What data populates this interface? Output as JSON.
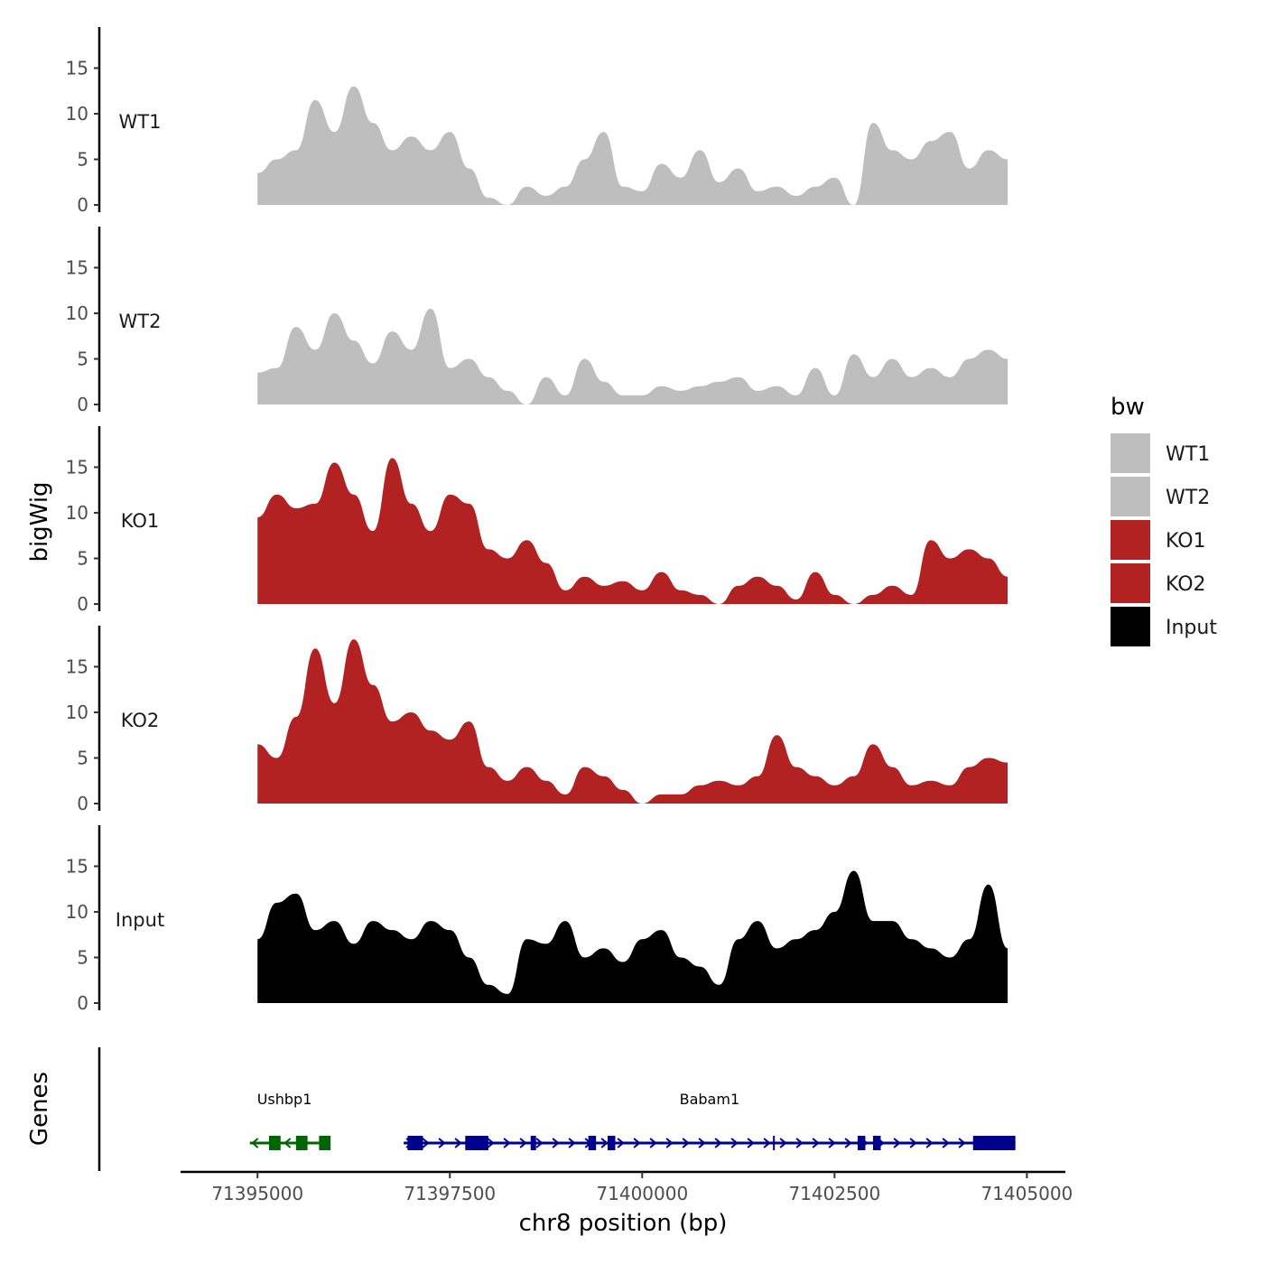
{
  "chart_data": {
    "type": "area",
    "chromosome": "chr8",
    "xlabel": "chr8 position (bp)",
    "ylabel": "bigWig",
    "genes_label": "Genes",
    "xlim": [
      71394000,
      71405500
    ],
    "ylim": [
      0,
      19.5
    ],
    "x_ticks": [
      71395000,
      71397500,
      71400000,
      71402500,
      71405000
    ],
    "x_tick_labels": [
      "71395000",
      "71397500",
      "71400000",
      "71402500",
      "71405000"
    ],
    "y_ticks": [
      0,
      5,
      10,
      15
    ],
    "y_tick_labels": [
      "0",
      "5",
      "10",
      "15"
    ],
    "legend": {
      "title": "bw",
      "entries": [
        {
          "label": "WT1",
          "color": "#bebebe"
        },
        {
          "label": "WT2",
          "color": "#bebebe"
        },
        {
          "label": "KO1",
          "color": "#b22222"
        },
        {
          "label": "KO2",
          "color": "#b22222"
        },
        {
          "label": "Input",
          "color": "#000000"
        }
      ]
    },
    "x": [
      71395000,
      71395250,
      71395500,
      71395750,
      71396000,
      71396250,
      71396500,
      71396750,
      71397000,
      71397250,
      71397500,
      71397750,
      71398000,
      71398250,
      71398500,
      71398750,
      71399000,
      71399250,
      71399500,
      71399750,
      71400000,
      71400250,
      71400500,
      71400750,
      71401000,
      71401250,
      71401500,
      71401750,
      71402000,
      71402250,
      71402500,
      71402750,
      71403000,
      71403250,
      71403500,
      71403750,
      71404000,
      71404250,
      71404500,
      71404750
    ],
    "series": [
      {
        "name": "WT1",
        "color": "#bebebe",
        "values": [
          3.5,
          5,
          6,
          11.5,
          8,
          13,
          9,
          6,
          7.5,
          6,
          8,
          4,
          0.8,
          0,
          2,
          1,
          2,
          5,
          8,
          2,
          1.5,
          4.5,
          3,
          6,
          2.5,
          4,
          1.5,
          2,
          1,
          2,
          3,
          0,
          9,
          6,
          5,
          7,
          8,
          4,
          6,
          5
        ]
      },
      {
        "name": "WT2",
        "color": "#bebebe",
        "values": [
          3.5,
          4,
          8.5,
          6,
          10,
          7,
          4.5,
          8,
          6,
          10.5,
          4,
          5,
          3,
          1.5,
          0,
          3,
          1,
          5,
          2.5,
          1,
          1,
          2,
          1.5,
          2,
          2.5,
          3,
          1.5,
          2,
          1,
          4,
          1,
          5.5,
          3,
          5,
          3,
          4,
          3,
          5,
          6,
          5
        ]
      },
      {
        "name": "KO1",
        "color": "#b22222",
        "values": [
          9.5,
          12,
          10.5,
          11,
          15.5,
          12,
          8,
          16,
          11,
          8,
          12,
          11,
          6,
          5,
          7,
          4.5,
          1.5,
          3,
          2,
          2.5,
          1.5,
          3.5,
          1.5,
          1,
          0,
          2,
          3,
          2,
          0.5,
          3.5,
          1,
          0,
          1,
          2,
          1,
          7,
          5,
          6,
          5,
          3
        ]
      },
      {
        "name": "KO2",
        "color": "#b22222",
        "values": [
          6.5,
          5,
          9.5,
          17,
          11,
          18,
          13,
          9,
          10,
          8,
          7,
          9,
          4,
          2.5,
          4,
          2.5,
          1,
          4,
          3,
          1.5,
          0,
          1,
          1,
          2,
          2.5,
          2,
          3,
          7.5,
          4,
          3,
          2,
          3,
          6.5,
          4,
          2,
          2.5,
          2,
          4,
          5,
          4.5
        ]
      },
      {
        "name": "Input",
        "color": "#000000",
        "values": [
          7,
          11,
          12,
          8,
          9,
          6.5,
          9,
          8,
          7,
          9,
          8,
          5,
          2,
          1,
          7,
          6.5,
          9,
          5,
          6,
          4.5,
          7,
          8,
          5,
          4,
          2,
          7,
          9,
          6,
          7,
          8,
          10,
          14.5,
          9,
          9,
          7,
          6,
          5,
          7,
          13,
          6
        ]
      }
    ],
    "genes": [
      {
        "name": "Ushbp1",
        "strand": "-",
        "color": "#006400",
        "start": 71394900,
        "end": 71395800,
        "exons": [
          [
            71395150,
            71395300
          ],
          [
            71395500,
            71395650
          ],
          [
            71395800,
            71395950
          ]
        ]
      },
      {
        "name": "Babam1",
        "strand": "+",
        "color": "#00008b",
        "start": 71396900,
        "end": 71404850,
        "exons": [
          [
            71396950,
            71397150
          ],
          [
            71397700,
            71398000
          ],
          [
            71398550,
            71398620
          ],
          [
            71399300,
            71399400
          ],
          [
            71399550,
            71399650
          ],
          [
            71401700,
            71401720
          ],
          [
            71402800,
            71402900
          ],
          [
            71403000,
            71403100
          ],
          [
            71404300,
            71404850
          ]
        ]
      }
    ]
  }
}
